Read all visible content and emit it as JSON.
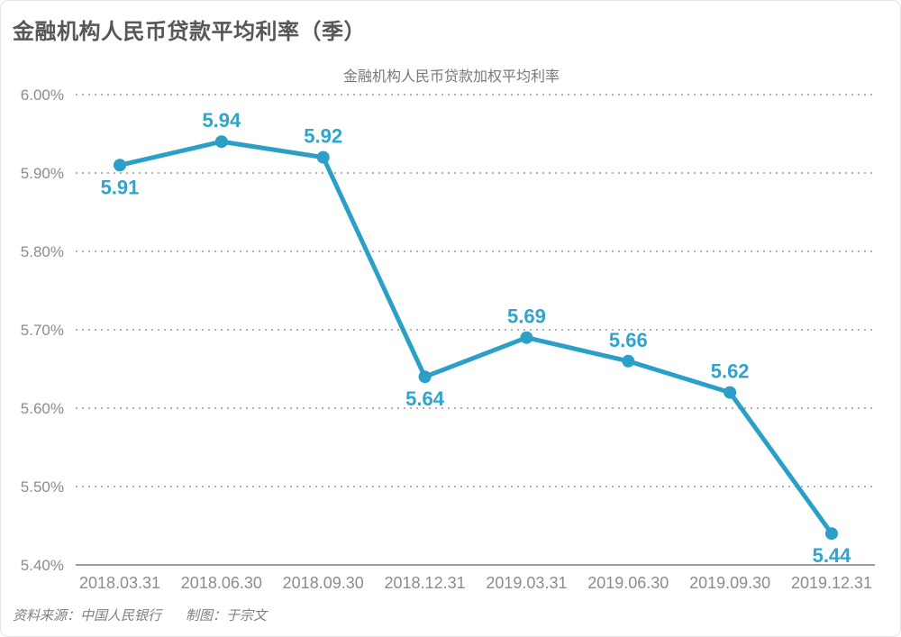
{
  "header": {
    "title": "金融机构人民币贷款平均利率（季）"
  },
  "footer": {
    "source": "资料来源：中国人民银行",
    "credit": "制图：于宗文"
  },
  "chart_data": {
    "type": "line",
    "title": "金融机构人民币贷款平均利率（季）",
    "subtitle": "金融机构人民币贷款加权平均利率",
    "categories": [
      "2018.03.31",
      "2018.06.30",
      "2018.09.30",
      "2018.12.31",
      "2019.03.31",
      "2019.06.30",
      "2019.09.30",
      "2019.12.31"
    ],
    "series": [
      {
        "name": "金融机构人民币贷款加权平均利率",
        "values": [
          5.91,
          5.94,
          5.92,
          5.64,
          5.69,
          5.66,
          5.62,
          5.44
        ]
      }
    ],
    "point_labels": [
      "5.91",
      "5.94",
      "5.92",
      "5.64",
      "5.69",
      "5.66",
      "5.62",
      "5.44"
    ],
    "label_positions": [
      "below",
      "above",
      "above",
      "below",
      "above",
      "above",
      "above",
      "below"
    ],
    "ylim": [
      5.4,
      6.0
    ],
    "yticks": [
      {
        "value": 6.0,
        "label": "6.00%"
      },
      {
        "value": 5.9,
        "label": "5.90%"
      },
      {
        "value": 5.8,
        "label": "5.80%"
      },
      {
        "value": 5.7,
        "label": "5.70%"
      },
      {
        "value": 5.6,
        "label": "5.60%"
      },
      {
        "value": 5.5,
        "label": "5.50%"
      },
      {
        "value": 5.4,
        "label": "5.40%"
      }
    ],
    "xlabel": "",
    "ylabel": "",
    "grid": "horizontal-dotted",
    "legend": "none",
    "colors": {
      "line": "#2B9FC7",
      "point_label": "#2FA4CC",
      "grid": "#AFB0B3",
      "axis": "#9B9CA0",
      "title": "#56575B",
      "subtitle": "#77787C",
      "axis_text": "#8B8C90",
      "footer_text": "#7E7F83"
    }
  }
}
